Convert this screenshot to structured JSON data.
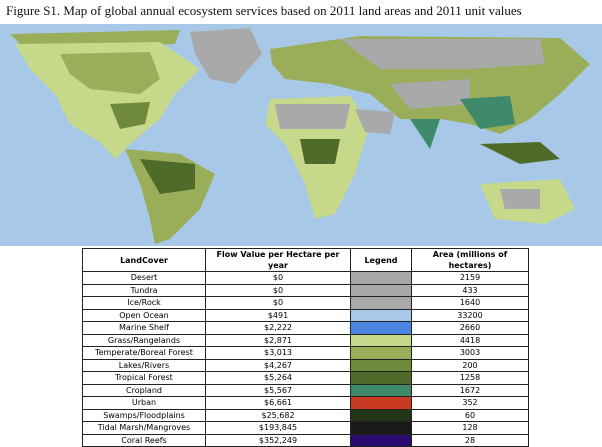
{
  "header": {
    "title": "Figure S1. Map of global annual ecosystem services based on 2011 land areas and 2011 unit values"
  },
  "table": {
    "columns": [
      "LandCover",
      "Flow Value per Hectare per year",
      "Legend",
      "Area (millions of hectares)"
    ],
    "rows": [
      {
        "landcover": "Desert",
        "flow": "$0",
        "color": "#a9a9a9",
        "area": "2159"
      },
      {
        "landcover": "Tundra",
        "flow": "$0",
        "color": "#a9a9a9",
        "area": "433"
      },
      {
        "landcover": "Ice/Rock",
        "flow": "$0",
        "color": "#a9a9a9",
        "area": "1640"
      },
      {
        "landcover": "Open Ocean",
        "flow": "$491",
        "color": "#a8c8e8",
        "area": "33200"
      },
      {
        "landcover": "Marine Shelf",
        "flow": "$2,222",
        "color": "#4a86e0",
        "area": "2660"
      },
      {
        "landcover": "Grass/Rangelands",
        "flow": "$2,871",
        "color": "#c6d98a",
        "area": "4418"
      },
      {
        "landcover": "Temperate/Boreal Forest",
        "flow": "$3,013",
        "color": "#9aae5a",
        "area": "3003"
      },
      {
        "landcover": "Lakes/Rivers",
        "flow": "$4,267",
        "color": "#6f8a3a",
        "area": "200"
      },
      {
        "landcover": "Tropical Forest",
        "flow": "$5,264",
        "color": "#4f6b2a",
        "area": "1258"
      },
      {
        "landcover": "Cropland",
        "flow": "$5,567",
        "color": "#3e8a6a",
        "area": "1672"
      },
      {
        "landcover": "Urban",
        "flow": "$6,661",
        "color": "#c83a22",
        "area": "352"
      },
      {
        "landcover": "Swamps/Floodplains",
        "flow": "$25,682",
        "color": "#24361a",
        "area": "60"
      },
      {
        "landcover": "Tidal Marsh/Mangroves",
        "flow": "$193,845",
        "color": "#1a1a1a",
        "area": "128"
      },
      {
        "landcover": "Coral Reefs",
        "flow": "$352,249",
        "color": "#2a0a6e",
        "area": "28"
      }
    ]
  }
}
